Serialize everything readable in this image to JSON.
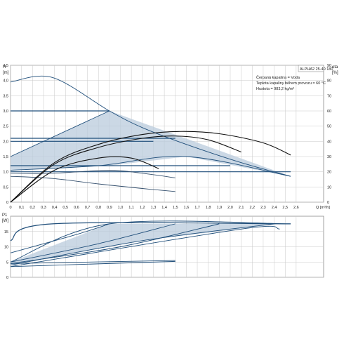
{
  "chart_data": [
    {
      "type": "line",
      "panel": "head",
      "ylabel_top": "H",
      "ylabel_unit": "[m]",
      "y2label_top": "eta",
      "y2label_unit": "[%]",
      "xlabel": "Q [m³/h]",
      "xlim": [
        0,
        2.85
      ],
      "ylim": [
        0,
        4.5
      ],
      "y2lim": [
        0,
        90
      ],
      "x_ticks": [
        "0",
        "0,1",
        "0,2",
        "0,3",
        "0,4",
        "0,5",
        "0,6",
        "0,7",
        "0,8",
        "0,9",
        "1,0",
        "1,1",
        "1,2",
        "1,3",
        "1,4",
        "1,5",
        "1,6",
        "1,7",
        "1,8",
        "1,9",
        "2,0",
        "2,1",
        "2,2",
        "2,3",
        "2,4",
        "2,5",
        "2,6"
      ],
      "y_ticks": [
        "0",
        "0,5",
        "1,0",
        "1,5",
        "2,0",
        "2,5",
        "3,0",
        "3,5",
        "4,0",
        "4,5"
      ],
      "y2_ticks": [
        "0",
        "10",
        "20",
        "30",
        "40",
        "50",
        "60",
        "70",
        "80",
        "90"
      ],
      "grid": true,
      "model_label": "ALPHA2 25-40 180",
      "info_lines": [
        "Čerpaná kapalina = Voda",
        "Teplota kapaliny během provozu = 60 °C",
        "Hustota = 983,2 kg/m³"
      ],
      "series": [
        {
          "role": "max-curve",
          "x": [
            0,
            0.38,
            0.9,
            1.2,
            1.6,
            2.1,
            2.55
          ],
          "y": [
            3.95,
            4.1,
            3.0,
            2.45,
            1.9,
            1.3,
            0.85
          ]
        },
        {
          "role": "proportional-pressure-high",
          "x": [
            0,
            0.9
          ],
          "y": [
            1.5,
            3.0
          ]
        },
        {
          "role": "constant-pressure-3m",
          "x": [
            0,
            0.9
          ],
          "y": [
            3.0,
            3.0
          ]
        },
        {
          "role": "constant-pressure-2.1m",
          "x": [
            0,
            1.5
          ],
          "y": [
            2.1,
            2.1
          ]
        },
        {
          "role": "constant-pressure-2.0m",
          "x": [
            0,
            1.3
          ],
          "y": [
            2.0,
            2.0
          ]
        },
        {
          "role": "constant-pressure-1.2m",
          "x": [
            0,
            2.0
          ],
          "y": [
            1.2,
            1.2
          ]
        },
        {
          "role": "constant-pressure-1.0m",
          "x": [
            0,
            2.55
          ],
          "y": [
            1.0,
            1.0
          ]
        },
        {
          "role": "autoadapt-limit",
          "x": [
            0,
            0.8,
            1.6,
            2.55
          ],
          "y": [
            1.05,
            1.2,
            1.5,
            0.85
          ]
        },
        {
          "role": "min-curve",
          "x": [
            0,
            0.38,
            0.8,
            1.2,
            1.5
          ],
          "y": [
            0.85,
            0.78,
            0.6,
            0.45,
            0.35
          ]
        },
        {
          "role": "intermediate-curve",
          "x": [
            0,
            0.38,
            0.9,
            1.2,
            1.5
          ],
          "y": [
            0.95,
            0.95,
            1.05,
            0.95,
            0.8
          ]
        },
        {
          "role": "efficiency-max",
          "y_axis": "eta",
          "x": [
            0,
            0.4,
            0.8,
            1.2,
            1.55,
            1.9,
            2.3,
            2.55
          ],
          "y": [
            0,
            26,
            38,
            44.5,
            46.5,
            45,
            39,
            31
          ]
        },
        {
          "role": "efficiency-mid",
          "y_axis": "eta",
          "x": [
            0,
            0.4,
            0.8,
            1.2,
            1.5,
            1.8,
            2.1
          ],
          "y": [
            0,
            25,
            36,
            42,
            43.5,
            41,
            33
          ]
        },
        {
          "role": "efficiency-low",
          "y_axis": "eta",
          "x": [
            0,
            0.4,
            0.8,
            1.1,
            1.35
          ],
          "y": [
            0,
            21,
            29,
            29,
            22
          ]
        }
      ]
    },
    {
      "type": "line",
      "panel": "power",
      "ylabel_top": "P1",
      "ylabel_unit": "[W]",
      "xlim": [
        0,
        2.85
      ],
      "ylim": [
        0,
        20
      ],
      "y_ticks": [
        "0",
        "5",
        "10",
        "15"
      ],
      "grid": true,
      "series": [
        {
          "role": "power-max",
          "x": [
            0,
            0.38,
            2.55
          ],
          "y": [
            12,
            17.5,
            17.5
          ]
        },
        {
          "role": "power-pp-high",
          "x": [
            0,
            0.9,
            2.55
          ],
          "y": [
            5,
            17.5,
            17.5
          ]
        },
        {
          "role": "power-cp-high",
          "x": [
            0,
            0.6,
            0.9
          ],
          "y": [
            8,
            14,
            17.5
          ]
        },
        {
          "role": "power-cp-mid",
          "x": [
            0,
            0.8,
            1.5
          ],
          "y": [
            5,
            11,
            17.5
          ]
        },
        {
          "role": "power-cp-low",
          "x": [
            0,
            1.0,
            1.9
          ],
          "y": [
            4.5,
            10,
            17.5
          ]
        },
        {
          "role": "power-limit",
          "x": [
            0,
            1.2,
            2.4
          ],
          "y": [
            4,
            12,
            17.5
          ]
        },
        {
          "role": "power-plateau",
          "x": [
            0,
            2.1,
            2.45
          ],
          "y": [
            3.5,
            15.8,
            15.8
          ]
        },
        {
          "role": "power-min",
          "x": [
            0,
            1.5
          ],
          "y": [
            4.5,
            5.5
          ]
        },
        {
          "role": "power-min2",
          "x": [
            0,
            1.5
          ],
          "y": [
            3.5,
            5.2
          ]
        }
      ]
    }
  ]
}
